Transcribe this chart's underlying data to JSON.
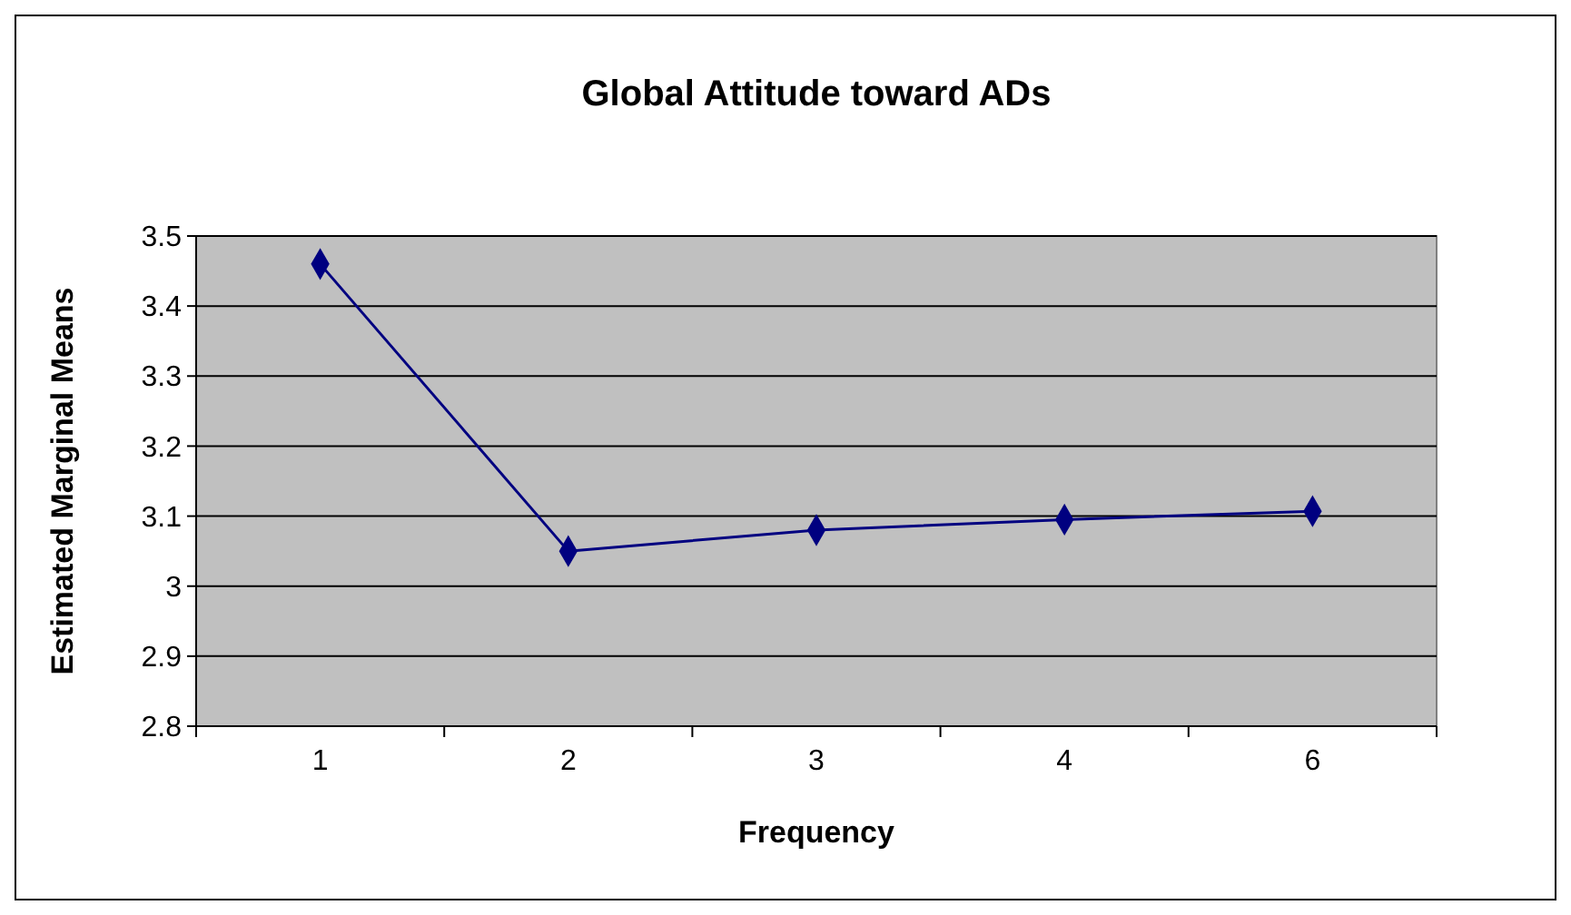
{
  "chart_data": {
    "type": "line",
    "title": "Global Attitude toward ADs",
    "xlabel": "Frequency",
    "ylabel": "Estimated Marginal Means",
    "categories": [
      "1",
      "2",
      "3",
      "4",
      "6"
    ],
    "series": [
      {
        "color": "#000080",
        "values": [
          3.46,
          3.05,
          3.08,
          3.095,
          3.107
        ]
      }
    ],
    "ylim": [
      2.8,
      3.5
    ],
    "yticks": [
      2.8,
      2.9,
      3,
      3.1,
      3.2,
      3.3,
      3.4,
      3.5
    ],
    "grid": "y",
    "marker": "diamond"
  }
}
